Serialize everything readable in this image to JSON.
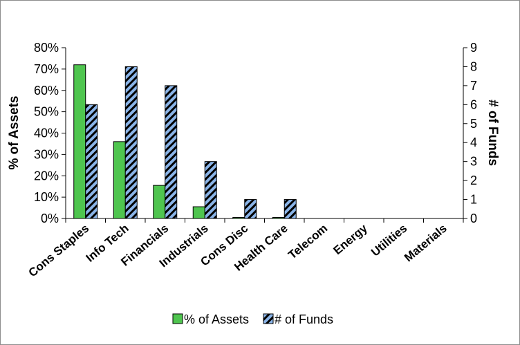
{
  "chart_data": {
    "type": "bar",
    "categories": [
      "Cons Staples",
      "Info Tech",
      "Financials",
      "Industrials",
      "Cons Disc",
      "Health Care",
      "Telecom",
      "Energy",
      "Utilities",
      "Materials"
    ],
    "series": [
      {
        "name": "% of Assets",
        "axis": "left",
        "values": [
          0.72,
          0.36,
          0.155,
          0.055,
          0.005,
          0.005,
          0,
          0,
          0,
          0
        ],
        "color": "#4fc54f",
        "pattern": "solid"
      },
      {
        "name": "# of Funds",
        "axis": "right",
        "values": [
          6,
          8,
          7,
          3,
          1,
          1,
          0,
          0,
          0,
          0
        ],
        "color": "#8ab4e8",
        "pattern": "diagonal-stripes-black"
      }
    ],
    "ylabel": "% of Assets",
    "ylabel_right": "# of Funds",
    "ylim": [
      0,
      0.8
    ],
    "ylim_right": [
      0,
      9
    ],
    "yticks": [
      "0%",
      "10%",
      "20%",
      "30%",
      "40%",
      "50%",
      "60%",
      "70%",
      "80%"
    ],
    "yticks_right": [
      "0",
      "1",
      "2",
      "3",
      "4",
      "5",
      "6",
      "7",
      "8",
      "9"
    ],
    "grid": false,
    "legend": "bottom"
  }
}
